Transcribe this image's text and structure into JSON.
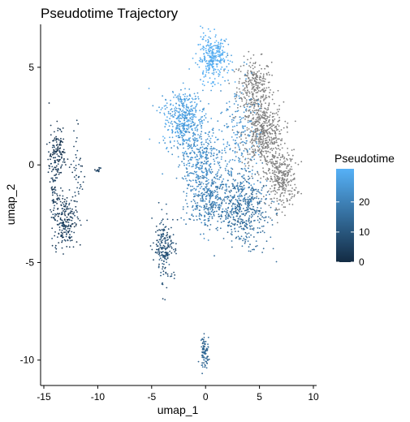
{
  "chart_data": {
    "type": "scatter",
    "title": "Pseudotime Trajectory",
    "xlabel": "umap_1",
    "ylabel": "umap_2",
    "xlim": [
      -15.3,
      10.3
    ],
    "ylim": [
      -11.3,
      7.2
    ],
    "xticks": [
      -15,
      -10,
      -5,
      0,
      5,
      10
    ],
    "yticks": [
      -10,
      -5,
      0,
      5
    ],
    "grid": false,
    "legend": {
      "title": "Pseudotime",
      "placement": "right",
      "ticks": [
        0,
        10,
        20
      ],
      "range": [
        0,
        31
      ]
    },
    "na_color": "#808080",
    "colors": {
      "low": "#132B43",
      "high": "#56B1F7"
    },
    "clusters": [
      {
        "name": "top",
        "cx": 0.6,
        "cy": 5.5,
        "sx": 0.9,
        "sy": 0.7,
        "n": 300,
        "t": 30
      },
      {
        "name": "upper-left",
        "cx": -2.0,
        "cy": 2.4,
        "sx": 1.2,
        "sy": 0.9,
        "n": 420,
        "t": 27
      },
      {
        "name": "middle",
        "cx": -0.5,
        "cy": 0.3,
        "sx": 1.4,
        "sy": 1.0,
        "n": 350,
        "t": 23
      },
      {
        "name": "center-low",
        "cx": 0.2,
        "cy": -1.8,
        "sx": 1.2,
        "sy": 0.9,
        "n": 300,
        "t": 19
      },
      {
        "name": "lower-right",
        "cx": 3.5,
        "cy": -2.3,
        "sx": 1.5,
        "sy": 1.1,
        "n": 480,
        "t": 16
      },
      {
        "name": "right-stream",
        "cx": 3.0,
        "cy": 1.0,
        "sx": 1.2,
        "sy": 2.2,
        "n": 220,
        "t": 24
      },
      {
        "name": "arm",
        "cx": -3.8,
        "cy": -4.2,
        "sx": 0.6,
        "sy": 1.0,
        "n": 200,
        "t": 9
      },
      {
        "name": "bottom",
        "cx": -0.1,
        "cy": -9.6,
        "sx": 0.25,
        "sy": 0.45,
        "n": 90,
        "t": 14
      },
      {
        "name": "left-top",
        "cx": -13.8,
        "cy": 0.6,
        "sx": 0.45,
        "sy": 0.9,
        "n": 130,
        "t": 3
      },
      {
        "name": "left-bottom",
        "cx": -13.0,
        "cy": -2.9,
        "sx": 0.7,
        "sy": 0.9,
        "n": 200,
        "t": 5
      },
      {
        "name": "left-edge",
        "cx": -14.0,
        "cy": -1.3,
        "sx": 0.25,
        "sy": 1.3,
        "n": 70,
        "t": 4
      },
      {
        "name": "right-arc",
        "cx": -11.8,
        "cy": -0.6,
        "sx": 0.35,
        "sy": 1.4,
        "n": 45,
        "t": 6
      },
      {
        "name": "tiny",
        "cx": -10.0,
        "cy": -0.3,
        "sx": 0.18,
        "sy": 0.1,
        "n": 12,
        "t": 6
      }
    ],
    "gray_clusters": [
      {
        "name": "gray-upper",
        "cx": 4.5,
        "cy": 4.0,
        "sx": 1.0,
        "sy": 0.9,
        "n": 280
      },
      {
        "name": "gray-mid",
        "cx": 5.3,
        "cy": 1.6,
        "sx": 1.2,
        "sy": 1.0,
        "n": 500
      },
      {
        "name": "gray-lower",
        "cx": 7.0,
        "cy": -0.7,
        "sx": 0.9,
        "sy": 0.9,
        "n": 320
      }
    ]
  }
}
